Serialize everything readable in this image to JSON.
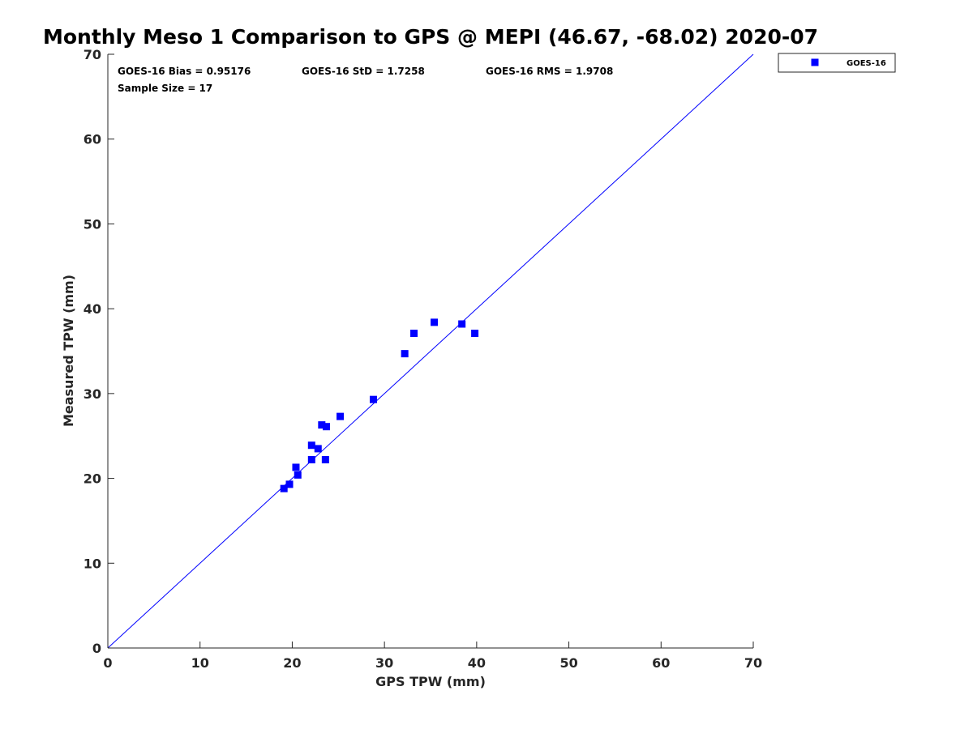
{
  "chart_data": {
    "type": "scatter",
    "title": "Monthly Meso 1 Comparison to GPS @ MEPI (46.67, -68.02) 2020-07",
    "xlabel": "GPS TPW (mm)",
    "ylabel": "Measured TPW (mm)",
    "xlim": [
      0,
      70
    ],
    "ylim": [
      0,
      70
    ],
    "xticks": [
      "0",
      "10",
      "20",
      "30",
      "40",
      "50",
      "60",
      "70"
    ],
    "yticks": [
      "0",
      "10",
      "20",
      "30",
      "40",
      "50",
      "60",
      "70"
    ],
    "grid": false,
    "legend_position": "top-right outside",
    "reference_line": {
      "slope": 1,
      "intercept": 0,
      "color": "#0000ff"
    },
    "stats": {
      "bias": "GOES-16 Bias = 0.95176",
      "std": "GOES-16 StD = 1.7258",
      "rms": "GOES-16 RMS = 1.9708",
      "sample_size": "Sample Size = 17"
    },
    "series": [
      {
        "name": "GOES-16",
        "color": "#0000ff",
        "marker": "square",
        "points": [
          [
            19.1,
            18.8
          ],
          [
            19.7,
            19.3
          ],
          [
            20.4,
            21.3
          ],
          [
            20.6,
            20.4
          ],
          [
            22.1,
            22.2
          ],
          [
            22.1,
            23.9
          ],
          [
            22.8,
            23.5
          ],
          [
            23.2,
            26.3
          ],
          [
            23.6,
            22.2
          ],
          [
            23.7,
            26.1
          ],
          [
            25.2,
            27.3
          ],
          [
            28.8,
            29.3
          ],
          [
            32.2,
            34.7
          ],
          [
            33.2,
            37.1
          ],
          [
            35.4,
            38.4
          ],
          [
            38.4,
            38.2
          ],
          [
            39.8,
            37.1
          ]
        ]
      }
    ]
  }
}
